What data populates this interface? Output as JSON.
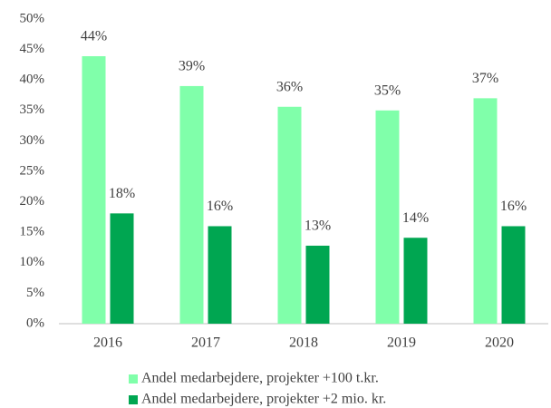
{
  "chart_data": {
    "type": "bar",
    "categories": [
      "2016",
      "2017",
      "2018",
      "2019",
      "2020"
    ],
    "series": [
      {
        "name": "Andel medarbejdere, projekter +100 t.kr.",
        "color": "#80ffaa",
        "values": [
          43.9,
          39,
          35.6,
          35,
          37
        ],
        "value_labels": [
          "44%",
          "39%",
          "36%",
          "35%",
          "37%"
        ]
      },
      {
        "name": "Andel medarbejdere, projekter +2 mio. kr.",
        "color": "#00a651",
        "values": [
          18.1,
          16,
          12.8,
          14.1,
          16
        ],
        "value_labels": [
          "18%",
          "16%",
          "13%",
          "14%",
          "16%"
        ]
      }
    ],
    "ylim": [
      0,
      50
    ],
    "yticks": [
      {
        "value": 0,
        "label": "0%"
      },
      {
        "value": 5,
        "label": "5%"
      },
      {
        "value": 10,
        "label": "10%"
      },
      {
        "value": 15,
        "label": "15%"
      },
      {
        "value": 20,
        "label": "20%"
      },
      {
        "value": 25,
        "label": "25%"
      },
      {
        "value": 30,
        "label": "30%"
      },
      {
        "value": 35,
        "label": "35%"
      },
      {
        "value": 40,
        "label": "40%"
      },
      {
        "value": 45,
        "label": "45%"
      },
      {
        "value": 50,
        "label": "50%"
      }
    ],
    "grid": false,
    "legend": "bottom"
  }
}
